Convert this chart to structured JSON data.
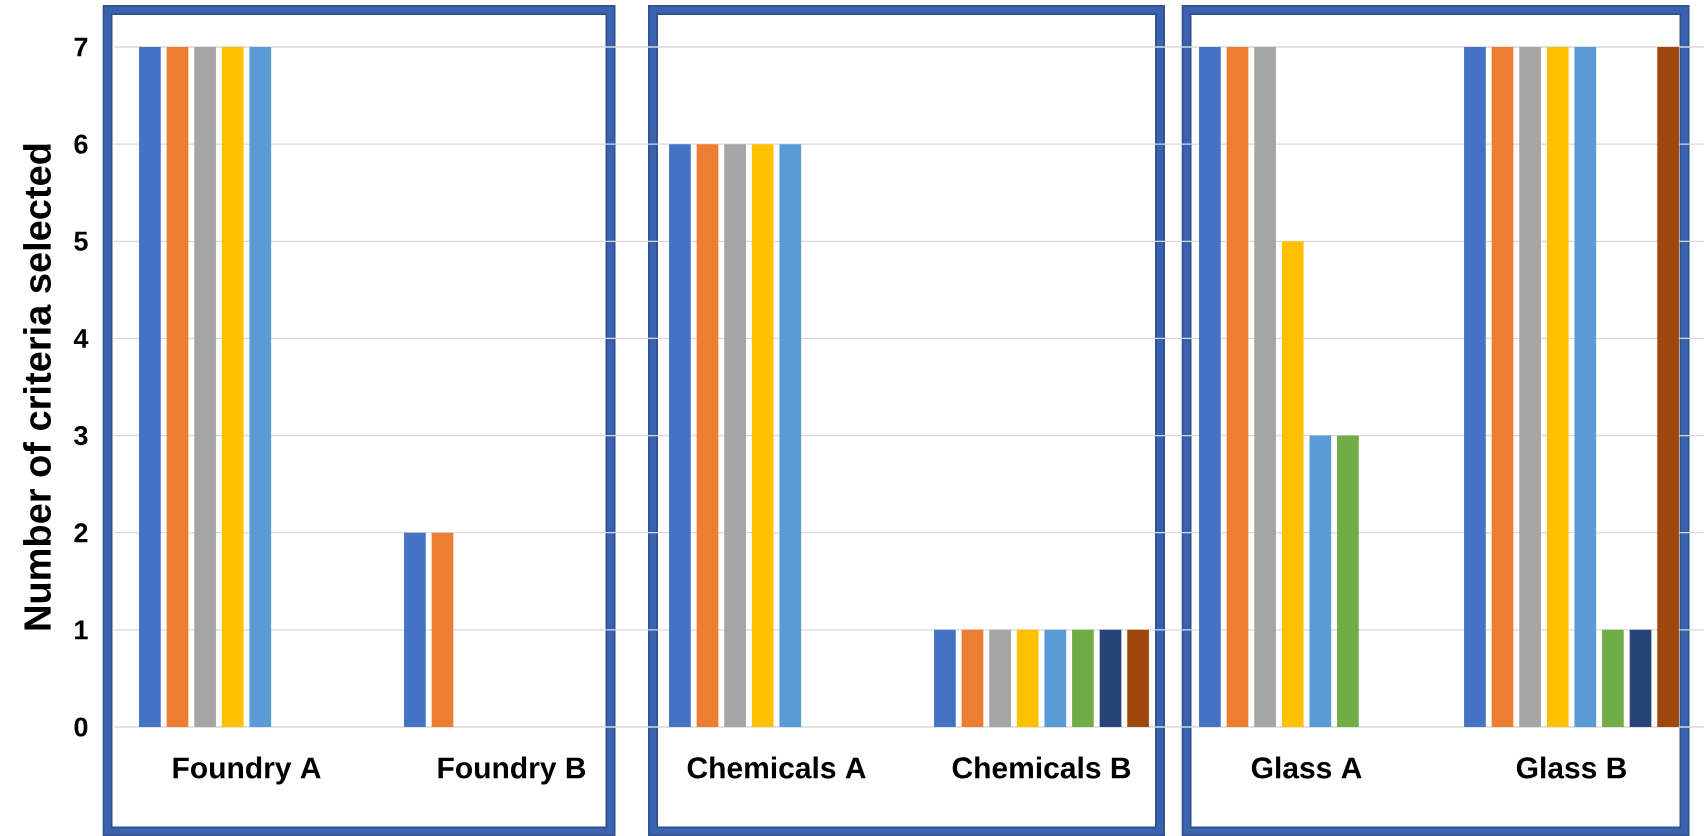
{
  "chart_data": {
    "type": "bar",
    "ylabel": "Number of criteria selected",
    "categories": [
      "Foundry A",
      "Foundry B",
      "Chemicals A",
      "Chemicals B",
      "Glass A",
      "Glass B"
    ],
    "series": [
      {
        "color": "#4472c4",
        "values": [
          7,
          2,
          6,
          1,
          7,
          7
        ]
      },
      {
        "color": "#ed7d31",
        "values": [
          7,
          2,
          6,
          1,
          7,
          7
        ]
      },
      {
        "color": "#a5a5a5",
        "values": [
          7,
          null,
          6,
          1,
          7,
          7
        ]
      },
      {
        "color": "#ffc000",
        "values": [
          7,
          null,
          6,
          1,
          5,
          7
        ]
      },
      {
        "color": "#5b9bd5",
        "values": [
          7,
          null,
          6,
          1,
          3,
          7
        ]
      },
      {
        "color": "#70ad47",
        "values": [
          null,
          null,
          null,
          1,
          3,
          1
        ]
      },
      {
        "color": "#264478",
        "values": [
          null,
          null,
          null,
          1,
          null,
          1
        ]
      },
      {
        "color": "#9e480e",
        "values": [
          null,
          null,
          null,
          1,
          null,
          7
        ]
      }
    ],
    "ylim": [
      0,
      7
    ],
    "yticks": [
      0,
      1,
      2,
      3,
      4,
      5,
      6,
      7
    ],
    "grid": "y"
  }
}
